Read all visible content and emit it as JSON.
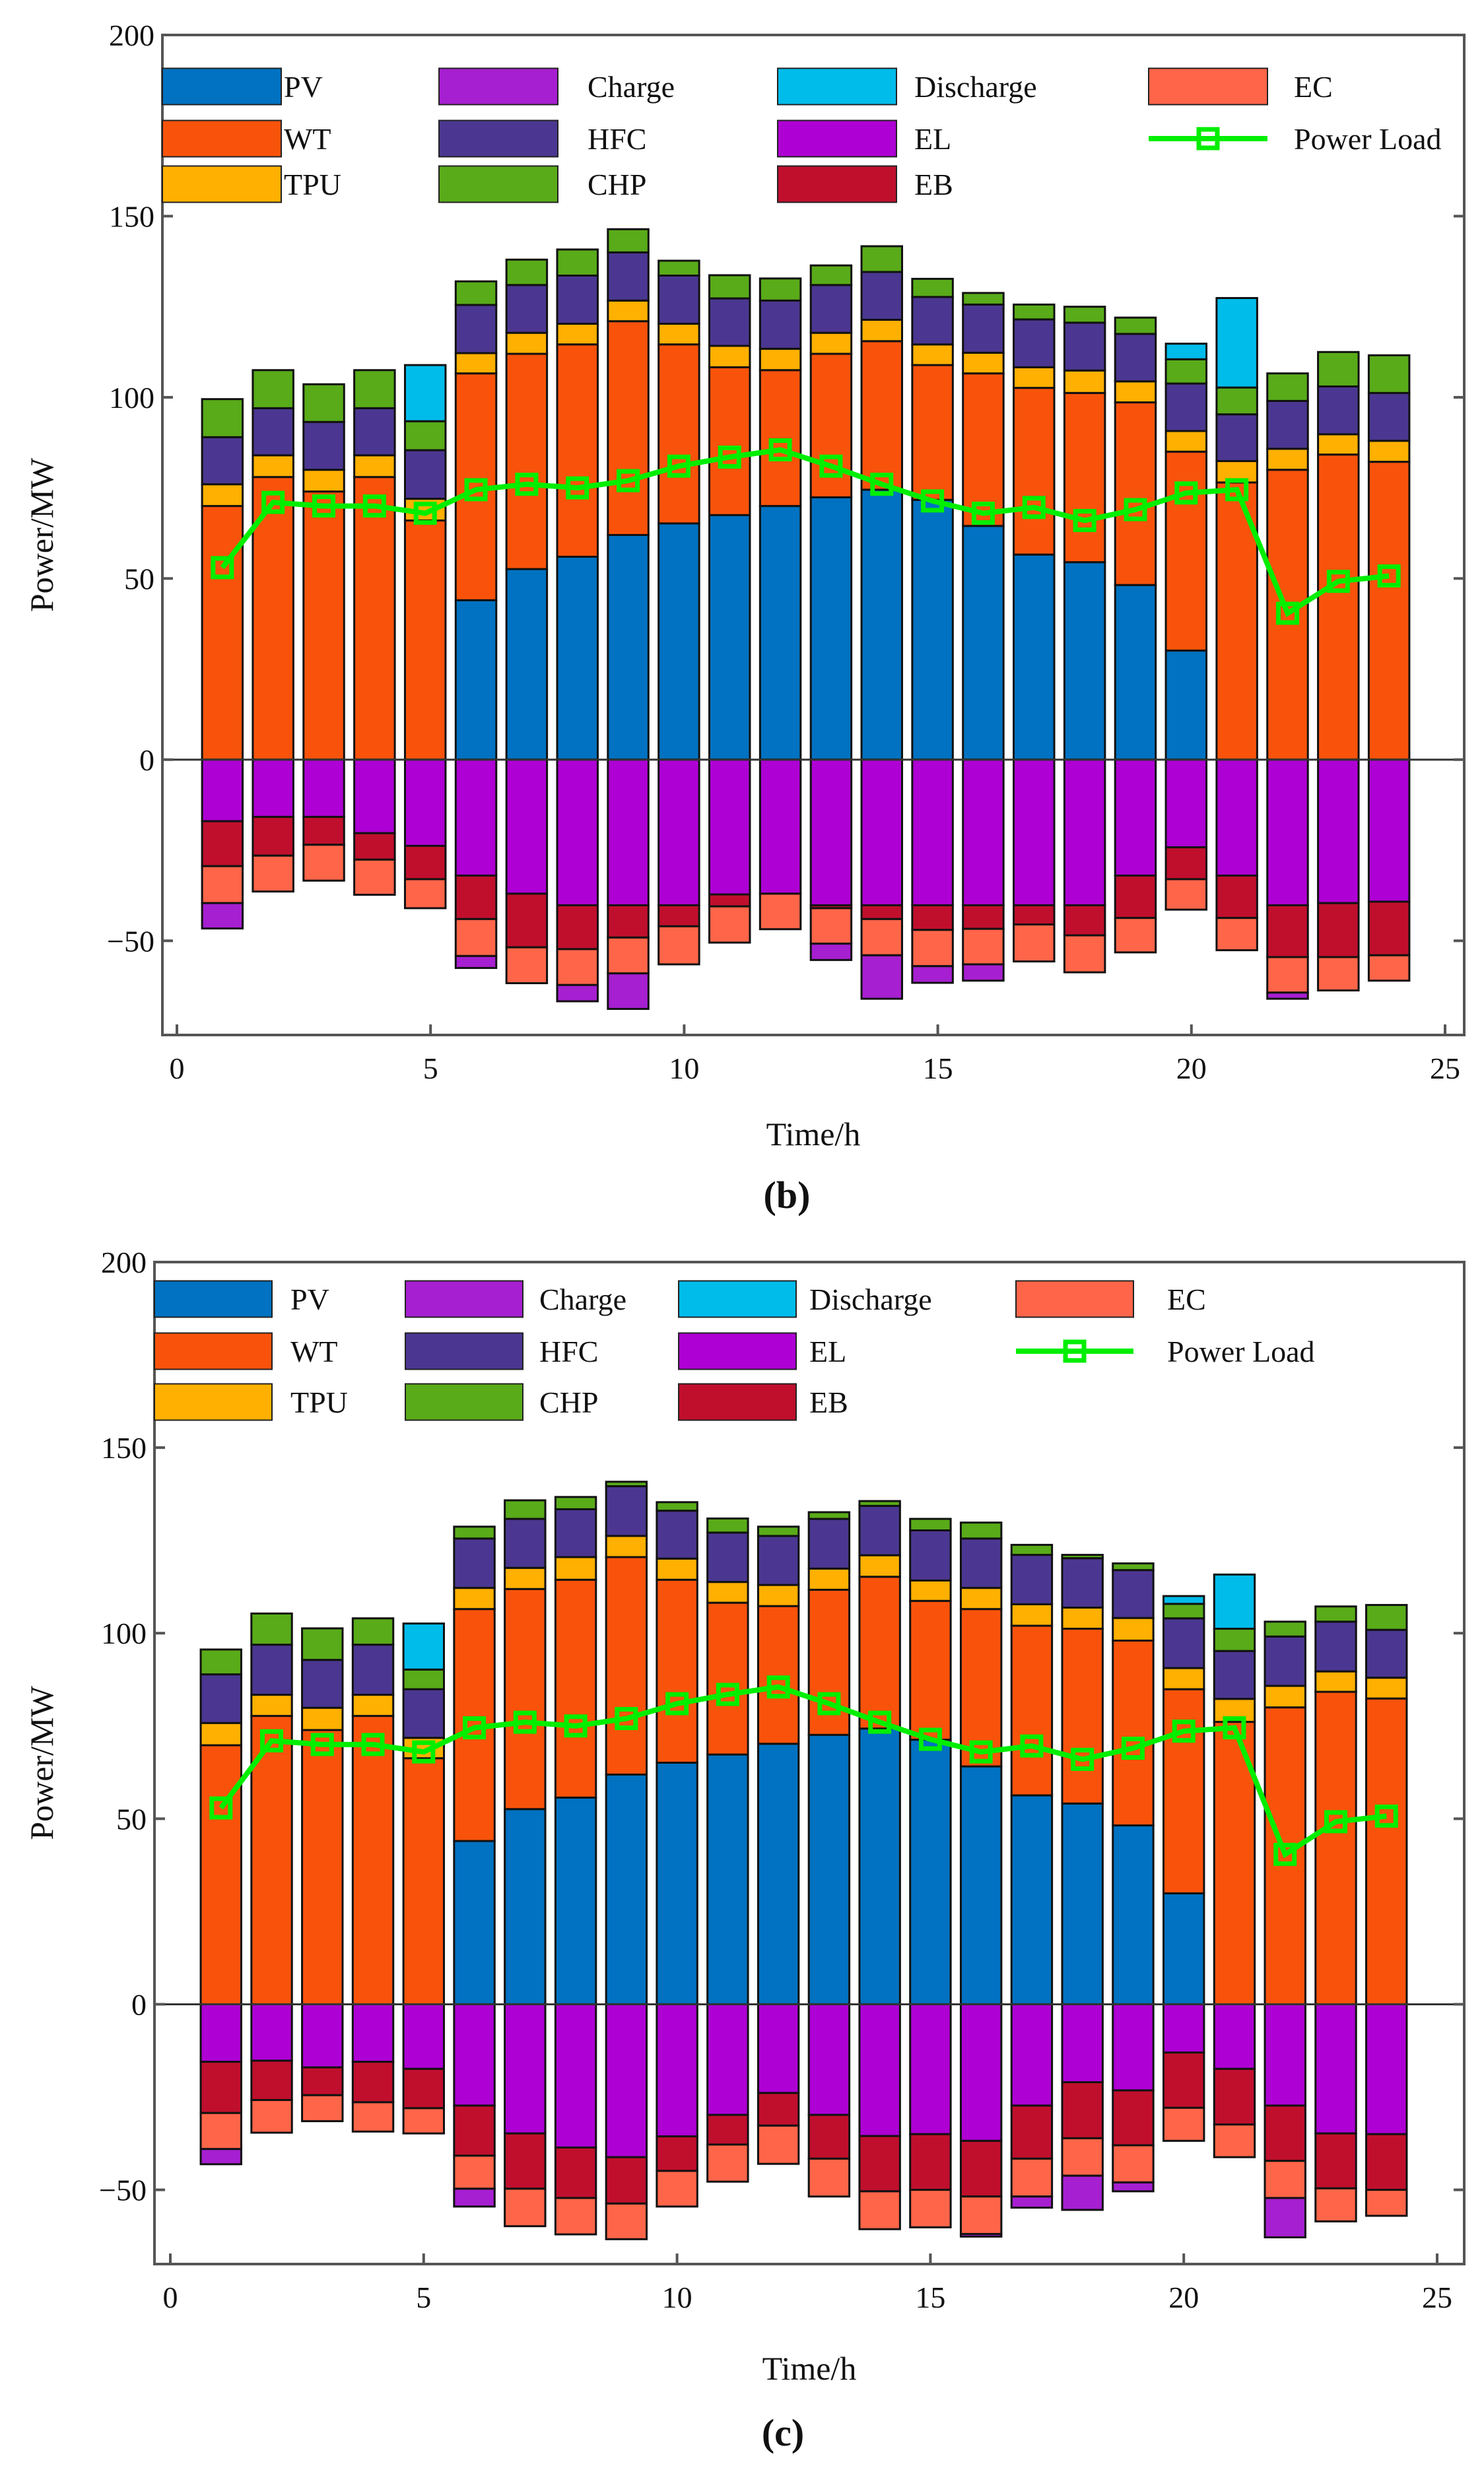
{
  "series_meta": [
    {
      "key": "PV",
      "color": "#0072C1"
    },
    {
      "key": "WT",
      "color": "#F9530B"
    },
    {
      "key": "TPU",
      "color": "#FFB000"
    },
    {
      "key": "Charge",
      "color": "#A61FD0"
    },
    {
      "key": "HFC",
      "color": "#4B3791"
    },
    {
      "key": "CHP",
      "color": "#59AB19"
    },
    {
      "key": "Discharge",
      "color": "#00BCEB"
    },
    {
      "key": "EL",
      "color": "#AE00D4"
    },
    {
      "key": "EB",
      "color": "#C00F2D"
    },
    {
      "key": "EC",
      "color": "#FF6549"
    },
    {
      "key": "Power Load",
      "color": "#00EE00"
    }
  ],
  "chart_data": [
    {
      "type": "bar",
      "stacked": true,
      "panel_label": "(b)",
      "xlabel": "Time/h",
      "ylabel": "Power/MW",
      "xlim": [
        0,
        25
      ],
      "ylim": [
        -76,
        200
      ],
      "xticks": [
        "0",
        "5",
        "10",
        "15",
        "20",
        "25"
      ],
      "yticks": [
        "−50",
        "0",
        "50",
        "100",
        "150",
        "200"
      ],
      "legend": [
        "PV",
        "WT",
        "TPU",
        "Charge",
        "HFC",
        "CHP",
        "Discharge",
        "EL",
        "EB",
        "EC",
        "Power Load"
      ],
      "legend_placement": "top",
      "x": [
        1,
        2,
        3,
        4,
        5,
        6,
        7,
        8,
        9,
        10,
        11,
        12,
        13,
        14,
        15,
        16,
        17,
        18,
        19,
        20,
        21,
        22,
        23,
        24
      ],
      "series": [
        {
          "name": "PV",
          "values": [
            0,
            0,
            0,
            0,
            0,
            44,
            52.6,
            56,
            62,
            65.2,
            67.5,
            70,
            72.4,
            74.5,
            71.7,
            64.5,
            56.6,
            54.5,
            48.2,
            30.1,
            0,
            0,
            0,
            0
          ]
        },
        {
          "name": "WT",
          "values": [
            70,
            78,
            74,
            78,
            66,
            62.6,
            59.4,
            58.6,
            59,
            49.4,
            40.8,
            37.5,
            39.6,
            41,
            37.2,
            42.1,
            46,
            46.7,
            50.4,
            54.9,
            76.5,
            80,
            84.2,
            82.2
          ]
        },
        {
          "name": "TPU",
          "values": [
            6,
            6,
            6,
            6,
            6,
            5.6,
            5.8,
            5.7,
            5.7,
            5.7,
            5.9,
            5.9,
            5.8,
            5.9,
            5.7,
            5.7,
            5.7,
            6.2,
            5.8,
            5.7,
            5.9,
            5.8,
            5.6,
            5.8
          ]
        },
        {
          "name": "HFC",
          "values": [
            13,
            13,
            13.2,
            13,
            13.4,
            13.3,
            13.2,
            13.3,
            13.3,
            13.3,
            13.1,
            13.3,
            13.2,
            13.2,
            13.1,
            13.3,
            13.2,
            13.2,
            13.1,
            13.1,
            12.9,
            13.2,
            13.2,
            13.2
          ]
        },
        {
          "name": "CHP",
          "values": [
            10.5,
            10.5,
            10.4,
            10.5,
            8,
            6.5,
            7,
            7.2,
            6.4,
            4.1,
            6.4,
            6.1,
            5.4,
            7.1,
            5,
            3.2,
            4.1,
            4.4,
            4.5,
            6.7,
            7.4,
            7.6,
            9.5,
            10.4
          ]
        },
        {
          "name": "Discharge",
          "values": [
            0,
            0,
            0,
            0,
            15.5,
            0,
            0,
            0,
            0,
            0,
            0,
            0,
            0,
            0,
            0,
            0,
            0,
            0,
            0,
            4.3,
            24.7,
            0,
            0,
            0
          ]
        },
        {
          "name": "EL",
          "values": [
            -17,
            -15.8,
            -15.8,
            -20.3,
            -23.8,
            -32,
            -37,
            -40.2,
            -40.2,
            -40.2,
            -37.2,
            -37,
            -40.2,
            -40.2,
            -40.2,
            -40.2,
            -40.2,
            -40.2,
            -32,
            -24.2,
            -32,
            -40.2,
            -39.6,
            -39.2
          ]
        },
        {
          "name": "EB",
          "values": [
            -12.4,
            -10.7,
            -7.7,
            -7.3,
            -9.2,
            -12,
            -14.8,
            -12.1,
            -8.9,
            -5.8,
            -3.3,
            0,
            -0.8,
            -3.8,
            -6.8,
            -6.5,
            -5.3,
            -8.3,
            -11.7,
            -8.8,
            -11.7,
            -14.3,
            -14.9,
            -14.8
          ]
        },
        {
          "name": "EC",
          "values": [
            -10.2,
            -9.9,
            -9.9,
            -9.7,
            -8,
            -10.2,
            -9.9,
            -9.9,
            -9.9,
            -10.5,
            -10,
            -9.8,
            -9.8,
            -10,
            -10,
            -9.8,
            -10.2,
            -10.2,
            -9.5,
            -8.4,
            -8.9,
            -9.8,
            -9.2,
            -7
          ]
        },
        {
          "name": "Charge",
          "values": [
            -7,
            0,
            0,
            0,
            0,
            -3.3,
            0,
            -4.5,
            -9.8,
            0,
            0,
            0,
            -4.5,
            -12,
            -4.6,
            -4.5,
            0,
            0,
            0,
            0,
            0,
            -1.7,
            0,
            0
          ]
        },
        {
          "name": "Power Load",
          "type": "line",
          "values": [
            53,
            71,
            70,
            70,
            68,
            74.5,
            76,
            75,
            77,
            81,
            83.5,
            85.5,
            81,
            76,
            71.4,
            68,
            69.6,
            66,
            69,
            73.6,
            74.5,
            40.4,
            49.2,
            50.7
          ]
        }
      ]
    },
    {
      "type": "bar",
      "stacked": true,
      "panel_label": "(c)",
      "xlabel": "Time/h",
      "ylabel": "Power/MW",
      "xlim": [
        0,
        25
      ],
      "ylim": [
        -70,
        200
      ],
      "xticks": [
        "0",
        "5",
        "10",
        "15",
        "20",
        "25"
      ],
      "yticks": [
        "−50",
        "0",
        "50",
        "100",
        "150",
        "200"
      ],
      "legend": [
        "PV",
        "WT",
        "TPU",
        "Charge",
        "HFC",
        "CHP",
        "Discharge",
        "EL",
        "EB",
        "EC",
        "Power Load"
      ],
      "legend_placement": "top",
      "x": [
        1,
        2,
        3,
        4,
        5,
        6,
        7,
        8,
        9,
        10,
        11,
        12,
        13,
        14,
        15,
        16,
        17,
        18,
        19,
        20,
        21,
        22,
        23,
        24
      ],
      "series": [
        {
          "name": "PV",
          "values": [
            0,
            0,
            0,
            0,
            0,
            44,
            52.6,
            55.7,
            61.9,
            65.1,
            67.3,
            70.2,
            72.6,
            74.3,
            71.3,
            64.1,
            56.3,
            54.1,
            48.2,
            29.9,
            0,
            0,
            0,
            0
          ]
        },
        {
          "name": "WT",
          "values": [
            69.8,
            77.7,
            73.9,
            77.7,
            66.3,
            62.5,
            59.3,
            58.7,
            58.6,
            49.3,
            40.9,
            37.1,
            39.1,
            40.9,
            37.4,
            42.4,
            45.7,
            47.1,
            49.8,
            55,
            76.1,
            80,
            84.2,
            82.4
          ]
        },
        {
          "name": "TPU",
          "values": [
            6,
            5.7,
            6,
            5.7,
            5.5,
            5.7,
            5.7,
            6.1,
            5.7,
            5.7,
            5.6,
            5.7,
            5.7,
            5.8,
            5.5,
            5.7,
            5.8,
            5.7,
            6.1,
            5.7,
            6.2,
            5.8,
            5.5,
            5.6
          ]
        },
        {
          "name": "HFC",
          "values": [
            13.1,
            13.5,
            12.9,
            13.5,
            13.1,
            13.3,
            13.2,
            12.9,
            13.4,
            12.9,
            13.3,
            13.2,
            13.4,
            13.3,
            13.5,
            13.3,
            13.3,
            13.3,
            12.9,
            13.4,
            12.9,
            13.3,
            13.4,
            12.9
          ]
        },
        {
          "name": "CHP",
          "values": [
            6.7,
            8.4,
            8.5,
            7.1,
            5.3,
            3.2,
            5,
            3.3,
            1.2,
            2.3,
            3.8,
            2.5,
            1.8,
            1.3,
            3.1,
            4.3,
            2.7,
            0.9,
            1.8,
            3.9,
            6,
            4,
            4.1,
            6.7
          ]
        },
        {
          "name": "Discharge",
          "values": [
            0,
            0,
            0,
            0,
            12.4,
            0,
            0,
            0,
            0,
            0,
            0,
            0,
            0,
            0,
            0,
            0,
            0,
            0,
            0,
            2.1,
            14.6,
            0,
            0,
            0
          ]
        },
        {
          "name": "EL",
          "values": [
            -15.5,
            -15.2,
            -17,
            -15.5,
            -17.4,
            -27.3,
            -34.8,
            -38.6,
            -41.2,
            -35.6,
            -29.8,
            -23.9,
            -29.8,
            -35.5,
            -35,
            -36.8,
            -27.3,
            -21,
            -23.2,
            -13,
            -17.4,
            -27.3,
            -34.8,
            -35
          ]
        },
        {
          "name": "EB",
          "values": [
            -13.8,
            -10.6,
            -7.5,
            -10.9,
            -10.6,
            -13.5,
            -14.9,
            -13.6,
            -12.5,
            -9.3,
            -8,
            -8.8,
            -11.8,
            -14.9,
            -15,
            -15,
            -14.3,
            -15.1,
            -14.8,
            -14.9,
            -15,
            -14.9,
            -14.8,
            -15
          ]
        },
        {
          "name": "EC",
          "values": [
            -9.7,
            -8.8,
            -7,
            -7.9,
            -6.8,
            -8.9,
            -10.1,
            -9.8,
            -9.6,
            -9.6,
            -10,
            -10.3,
            -10.2,
            -10.2,
            -10.1,
            -10.1,
            -10.2,
            -10.1,
            -10,
            -8.9,
            -8.8,
            -10,
            -8.9,
            -7
          ]
        },
        {
          "name": "Charge",
          "values": [
            -4.1,
            0,
            0,
            0,
            0,
            -4.8,
            0,
            0,
            0,
            0,
            0,
            0,
            0,
            0,
            0,
            -0.7,
            -3,
            -9.2,
            -2.4,
            0,
            0,
            -10.6,
            0,
            0
          ]
        },
        {
          "name": "Power Load",
          "type": "line",
          "values": [
            52.9,
            71,
            70,
            70,
            68,
            74.5,
            76,
            75,
            77,
            81,
            83.5,
            85.5,
            81,
            76,
            71.4,
            68,
            69.6,
            66,
            69,
            73.6,
            74.5,
            40.4,
            49.2,
            50.7
          ]
        }
      ]
    }
  ]
}
